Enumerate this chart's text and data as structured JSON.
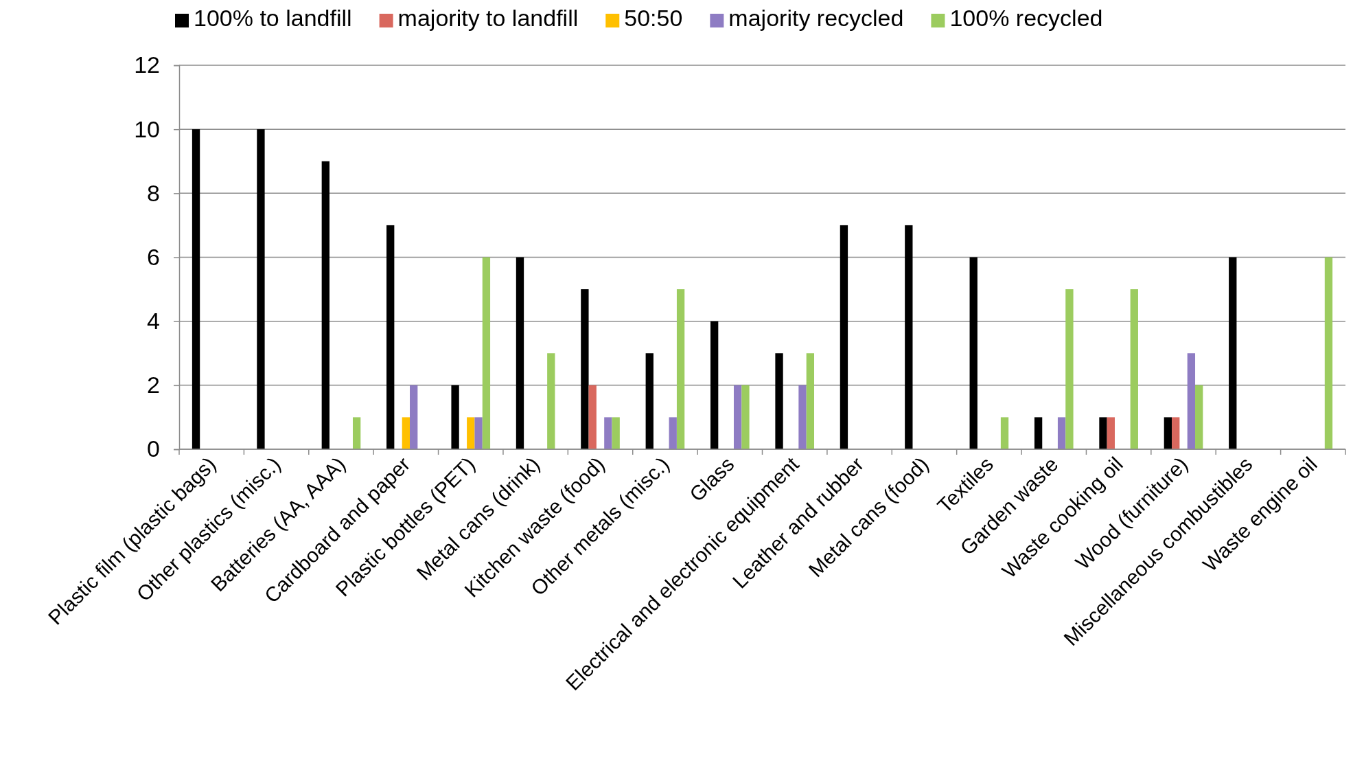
{
  "chart_data": {
    "type": "bar",
    "categories": [
      "Plastic film (plastic bags)",
      "Other plastics (misc.)",
      "Batteries (AA, AAA)",
      "Cardboard and paper",
      "Plastic bottles (PET)",
      "Metal cans (drink)",
      "Kitchen waste (food)",
      "Other metals (misc.)",
      "Glass",
      "Electrical and electronic equipment",
      "Leather and rubber",
      "Metal cans (food)",
      "Textiles",
      "Garden waste",
      "Waste cooking oil",
      "Wood (furniture)",
      "Miscellaneous combustibles",
      "Waste engine oil"
    ],
    "series": [
      {
        "name": "100% to landfill",
        "color": "#000000",
        "values": [
          10,
          10,
          9,
          7,
          2,
          6,
          5,
          3,
          4,
          3,
          7,
          7,
          6,
          1,
          1,
          1,
          6,
          0
        ]
      },
      {
        "name": "majority to landfill",
        "color": "#d9685e",
        "values": [
          0,
          0,
          0,
          0,
          0,
          0,
          2,
          0,
          0,
          0,
          0,
          0,
          0,
          0,
          1,
          1,
          0,
          0
        ]
      },
      {
        "name": "50:50",
        "color": "#ffc000",
        "values": [
          0,
          0,
          0,
          1,
          1,
          0,
          0,
          0,
          0,
          0,
          0,
          0,
          0,
          0,
          0,
          0,
          0,
          0
        ]
      },
      {
        "name": "majority recycled",
        "color": "#8e7cc3",
        "values": [
          0,
          0,
          0,
          2,
          1,
          0,
          1,
          1,
          2,
          2,
          0,
          0,
          0,
          1,
          0,
          3,
          0,
          0
        ]
      },
      {
        "name": "100% recycled",
        "color": "#9ccc5f",
        "values": [
          0,
          0,
          1,
          0,
          6,
          3,
          1,
          5,
          2,
          3,
          0,
          0,
          1,
          5,
          5,
          2,
          0,
          6
        ]
      }
    ],
    "ylim": [
      0,
      12
    ],
    "yticks": [
      0,
      2,
      4,
      6,
      8,
      10,
      12
    ],
    "grid": "y",
    "legend": "top"
  }
}
